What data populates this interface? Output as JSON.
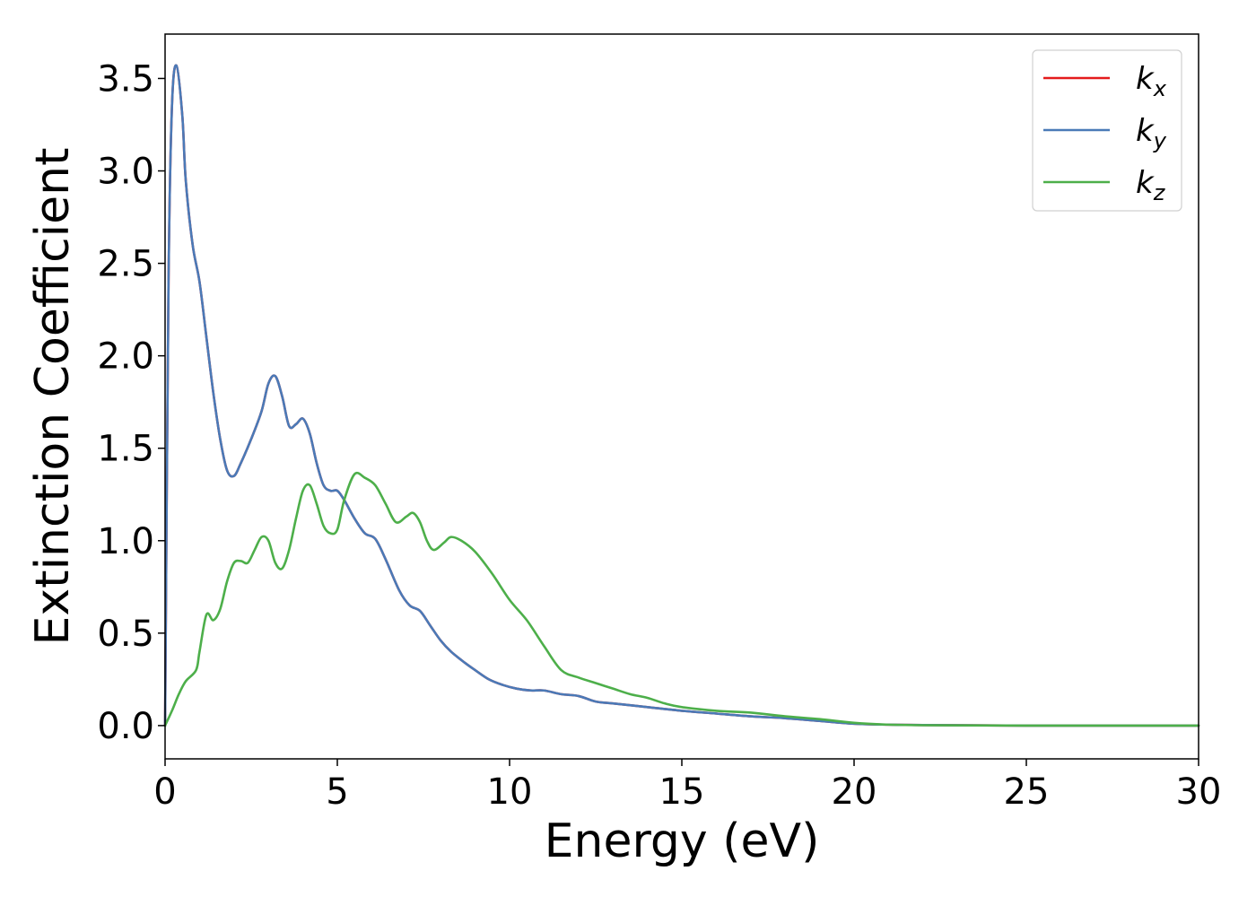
{
  "chart_data": {
    "type": "line",
    "title": "",
    "xlabel": "Energy (eV)",
    "ylabel": "Extinction Coefficient",
    "xlim": [
      0,
      30
    ],
    "ylim": [
      -0.18,
      3.74
    ],
    "xticks": [
      0,
      5,
      10,
      15,
      20,
      25,
      30
    ],
    "xtick_labels": [
      "0",
      "5",
      "10",
      "15",
      "20",
      "25",
      "30"
    ],
    "yticks": [
      0.0,
      0.5,
      1.0,
      1.5,
      2.0,
      2.5,
      3.0,
      3.5
    ],
    "ytick_labels": [
      "0.0",
      "0.5",
      "1.0",
      "1.5",
      "2.0",
      "2.5",
      "3.0",
      "3.5"
    ],
    "grid": false,
    "legend_position": "top-right",
    "series": [
      {
        "name": "k_x",
        "label_base": "k",
        "label_sub": "x",
        "color": "#e41a1c",
        "points": [
          [
            0.0,
            0.0
          ],
          [
            0.1,
            2.4
          ],
          [
            0.2,
            3.35
          ],
          [
            0.33,
            3.57
          ],
          [
            0.5,
            3.3
          ],
          [
            0.6,
            2.95
          ],
          [
            0.8,
            2.6
          ],
          [
            1.0,
            2.4
          ],
          [
            1.2,
            2.1
          ],
          [
            1.4,
            1.8
          ],
          [
            1.6,
            1.55
          ],
          [
            1.8,
            1.38
          ],
          [
            2.0,
            1.35
          ],
          [
            2.2,
            1.42
          ],
          [
            2.5,
            1.55
          ],
          [
            2.8,
            1.7
          ],
          [
            3.0,
            1.85
          ],
          [
            3.2,
            1.89
          ],
          [
            3.4,
            1.78
          ],
          [
            3.6,
            1.62
          ],
          [
            3.8,
            1.63
          ],
          [
            4.0,
            1.66
          ],
          [
            4.2,
            1.58
          ],
          [
            4.4,
            1.42
          ],
          [
            4.6,
            1.3
          ],
          [
            4.8,
            1.27
          ],
          [
            5.0,
            1.27
          ],
          [
            5.2,
            1.22
          ],
          [
            5.5,
            1.12
          ],
          [
            5.8,
            1.04
          ],
          [
            6.1,
            1.01
          ],
          [
            6.4,
            0.9
          ],
          [
            6.8,
            0.73
          ],
          [
            7.1,
            0.65
          ],
          [
            7.4,
            0.62
          ],
          [
            7.7,
            0.54
          ],
          [
            8.0,
            0.46
          ],
          [
            8.3,
            0.4
          ],
          [
            8.7,
            0.34
          ],
          [
            9.0,
            0.3
          ],
          [
            9.4,
            0.25
          ],
          [
            9.8,
            0.22
          ],
          [
            10.2,
            0.2
          ],
          [
            10.6,
            0.19
          ],
          [
            11.0,
            0.19
          ],
          [
            11.5,
            0.17
          ],
          [
            12.0,
            0.16
          ],
          [
            12.5,
            0.13
          ],
          [
            13.0,
            0.12
          ],
          [
            14.0,
            0.1
          ],
          [
            15.0,
            0.08
          ],
          [
            16.0,
            0.065
          ],
          [
            17.0,
            0.05
          ],
          [
            18.0,
            0.04
          ],
          [
            19.0,
            0.025
          ],
          [
            20.0,
            0.01
          ],
          [
            21.0,
            0.005
          ],
          [
            22.0,
            0.003
          ],
          [
            25.0,
            0.0
          ],
          [
            30.0,
            0.0
          ]
        ]
      },
      {
        "name": "k_y",
        "label_base": "k",
        "label_sub": "y",
        "color": "#4a7ab7",
        "points": [
          [
            0.0,
            0.0
          ],
          [
            0.1,
            2.4
          ],
          [
            0.2,
            3.35
          ],
          [
            0.33,
            3.57
          ],
          [
            0.5,
            3.3
          ],
          [
            0.6,
            2.95
          ],
          [
            0.8,
            2.6
          ],
          [
            1.0,
            2.4
          ],
          [
            1.2,
            2.1
          ],
          [
            1.4,
            1.8
          ],
          [
            1.6,
            1.55
          ],
          [
            1.8,
            1.38
          ],
          [
            2.0,
            1.35
          ],
          [
            2.2,
            1.42
          ],
          [
            2.5,
            1.55
          ],
          [
            2.8,
            1.7
          ],
          [
            3.0,
            1.85
          ],
          [
            3.2,
            1.89
          ],
          [
            3.4,
            1.78
          ],
          [
            3.6,
            1.62
          ],
          [
            3.8,
            1.63
          ],
          [
            4.0,
            1.66
          ],
          [
            4.2,
            1.58
          ],
          [
            4.4,
            1.42
          ],
          [
            4.6,
            1.3
          ],
          [
            4.8,
            1.27
          ],
          [
            5.0,
            1.27
          ],
          [
            5.2,
            1.22
          ],
          [
            5.5,
            1.12
          ],
          [
            5.8,
            1.04
          ],
          [
            6.1,
            1.01
          ],
          [
            6.4,
            0.9
          ],
          [
            6.8,
            0.73
          ],
          [
            7.1,
            0.65
          ],
          [
            7.4,
            0.62
          ],
          [
            7.7,
            0.54
          ],
          [
            8.0,
            0.46
          ],
          [
            8.3,
            0.4
          ],
          [
            8.7,
            0.34
          ],
          [
            9.0,
            0.3
          ],
          [
            9.4,
            0.25
          ],
          [
            9.8,
            0.22
          ],
          [
            10.2,
            0.2
          ],
          [
            10.6,
            0.19
          ],
          [
            11.0,
            0.19
          ],
          [
            11.5,
            0.17
          ],
          [
            12.0,
            0.16
          ],
          [
            12.5,
            0.13
          ],
          [
            13.0,
            0.12
          ],
          [
            14.0,
            0.1
          ],
          [
            15.0,
            0.08
          ],
          [
            16.0,
            0.065
          ],
          [
            17.0,
            0.05
          ],
          [
            18.0,
            0.04
          ],
          [
            19.0,
            0.025
          ],
          [
            20.0,
            0.01
          ],
          [
            21.0,
            0.005
          ],
          [
            22.0,
            0.003
          ],
          [
            25.0,
            0.0
          ],
          [
            30.0,
            0.0
          ]
        ]
      },
      {
        "name": "k_z",
        "label_base": "k",
        "label_sub": "z",
        "color": "#4daf4a",
        "points": [
          [
            0.0,
            0.0
          ],
          [
            0.2,
            0.08
          ],
          [
            0.4,
            0.17
          ],
          [
            0.6,
            0.24
          ],
          [
            0.9,
            0.3
          ],
          [
            1.0,
            0.4
          ],
          [
            1.2,
            0.6
          ],
          [
            1.4,
            0.57
          ],
          [
            1.6,
            0.63
          ],
          [
            1.8,
            0.78
          ],
          [
            2.0,
            0.88
          ],
          [
            2.2,
            0.89
          ],
          [
            2.4,
            0.88
          ],
          [
            2.6,
            0.95
          ],
          [
            2.8,
            1.02
          ],
          [
            3.0,
            1.0
          ],
          [
            3.2,
            0.88
          ],
          [
            3.4,
            0.85
          ],
          [
            3.6,
            0.95
          ],
          [
            3.8,
            1.12
          ],
          [
            4.0,
            1.27
          ],
          [
            4.2,
            1.3
          ],
          [
            4.4,
            1.2
          ],
          [
            4.6,
            1.08
          ],
          [
            4.8,
            1.04
          ],
          [
            5.0,
            1.06
          ],
          [
            5.2,
            1.22
          ],
          [
            5.5,
            1.36
          ],
          [
            5.8,
            1.34
          ],
          [
            6.1,
            1.3
          ],
          [
            6.4,
            1.2
          ],
          [
            6.7,
            1.1
          ],
          [
            7.0,
            1.13
          ],
          [
            7.2,
            1.15
          ],
          [
            7.4,
            1.1
          ],
          [
            7.6,
            1.0
          ],
          [
            7.8,
            0.95
          ],
          [
            8.1,
            0.99
          ],
          [
            8.3,
            1.02
          ],
          [
            8.6,
            1.0
          ],
          [
            9.0,
            0.94
          ],
          [
            9.5,
            0.82
          ],
          [
            10.0,
            0.68
          ],
          [
            10.5,
            0.57
          ],
          [
            11.0,
            0.43
          ],
          [
            11.5,
            0.3
          ],
          [
            12.0,
            0.26
          ],
          [
            12.5,
            0.23
          ],
          [
            13.0,
            0.2
          ],
          [
            13.5,
            0.17
          ],
          [
            14.0,
            0.15
          ],
          [
            14.5,
            0.12
          ],
          [
            15.0,
            0.1
          ],
          [
            16.0,
            0.08
          ],
          [
            17.0,
            0.07
          ],
          [
            18.0,
            0.05
          ],
          [
            19.0,
            0.035
          ],
          [
            20.0,
            0.015
          ],
          [
            21.0,
            0.005
          ],
          [
            22.0,
            0.002
          ],
          [
            25.0,
            0.0
          ],
          [
            30.0,
            0.0
          ]
        ]
      }
    ]
  }
}
